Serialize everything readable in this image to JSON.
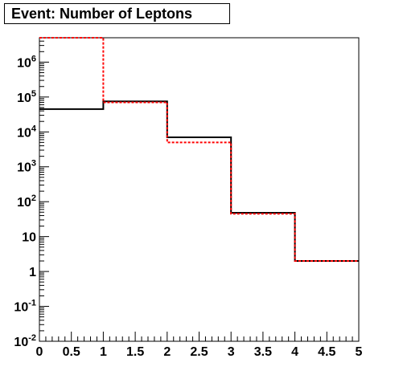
{
  "chart_data": {
    "type": "histogram",
    "title": "Event: Number of Leptons",
    "xlim": [
      0,
      5
    ],
    "ylim": [
      0.01,
      5000000
    ],
    "yscale": "log",
    "x_ticks": [
      "0",
      "0.5",
      "1",
      "1.5",
      "2",
      "2.5",
      "3",
      "3.5",
      "4",
      "4.5",
      "5"
    ],
    "y_ticks": [
      {
        "base": "10",
        "exp": "-2",
        "value": 0.01
      },
      {
        "base": "10",
        "exp": "-1",
        "value": 0.1
      },
      {
        "base": "1",
        "exp": "",
        "value": 1
      },
      {
        "base": "10",
        "exp": "",
        "value": 10
      },
      {
        "base": "10",
        "exp": "2",
        "value": 100
      },
      {
        "base": "10",
        "exp": "3",
        "value": 1000
      },
      {
        "base": "10",
        "exp": "4",
        "value": 10000
      },
      {
        "base": "10",
        "exp": "5",
        "value": 100000
      },
      {
        "base": "10",
        "exp": "6",
        "value": 1000000
      }
    ],
    "bin_edges": [
      0,
      1,
      2,
      3,
      4,
      5
    ],
    "series": [
      {
        "values": [
          45000,
          75000,
          7000,
          48,
          2
        ],
        "color": "#000000",
        "style": "solid"
      },
      {
        "values": [
          5000000,
          70000,
          5000,
          45,
          2
        ],
        "color": "#ff0000",
        "style": "dashed"
      }
    ]
  }
}
